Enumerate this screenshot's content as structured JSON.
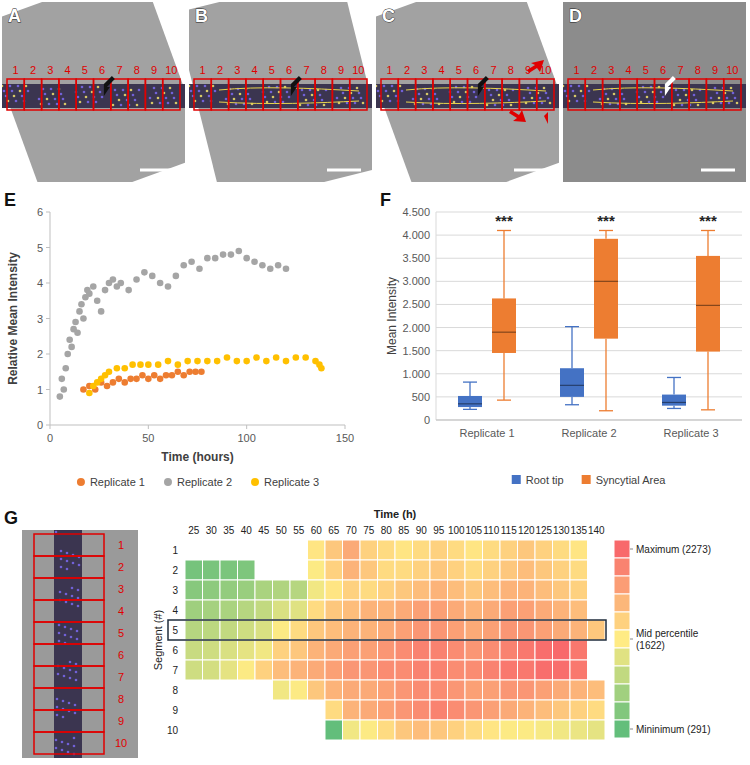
{
  "image_panels": [
    {
      "label": "A",
      "segments": [
        1,
        2,
        3,
        4,
        5,
        6,
        7,
        8,
        9,
        10
      ]
    },
    {
      "label": "B",
      "segments": [
        1,
        2,
        3,
        4,
        5,
        6,
        7,
        8,
        9,
        10
      ]
    },
    {
      "label": "C",
      "segments": [
        1,
        2,
        3,
        4,
        5,
        6,
        7,
        8,
        9,
        10
      ]
    },
    {
      "label": "D",
      "segments": [
        1,
        2,
        3,
        4,
        5,
        6,
        7,
        8,
        9,
        10
      ]
    }
  ],
  "g_image": {
    "segments": [
      1,
      2,
      3,
      4,
      5,
      6,
      7,
      8,
      9,
      10
    ]
  },
  "chart_data": [
    {
      "type": "scatter",
      "panel_label": "E",
      "xlabel": "Time (hours)",
      "ylabel": "Relative Mean Intensity",
      "xlim": [
        0,
        150
      ],
      "xticks": [
        0,
        50,
        100,
        150
      ],
      "ylim": [
        0,
        6
      ],
      "yticks": [
        0,
        1,
        2,
        3,
        4,
        5,
        6
      ],
      "grid": false,
      "legend": "bottom",
      "marker": "circle",
      "series": [
        {
          "name": "Replicate 1",
          "color": "#ed7d31",
          "x": [
            17,
            20,
            23,
            26,
            29,
            32,
            35,
            38,
            41,
            44,
            47,
            50,
            53,
            56,
            59,
            62,
            65,
            68,
            71,
            74,
            77
          ],
          "values": [
            1.0,
            1.1,
            1.0,
            1.2,
            1.1,
            1.2,
            1.3,
            1.2,
            1.3,
            1.3,
            1.4,
            1.3,
            1.4,
            1.3,
            1.4,
            1.4,
            1.5,
            1.4,
            1.5,
            1.5,
            1.5
          ]
        },
        {
          "name": "Replicate 2",
          "color": "#a5a5a5",
          "x": [
            5,
            6,
            7,
            8,
            9,
            10,
            11,
            12,
            13,
            14,
            15,
            16,
            17,
            18,
            19,
            20,
            22,
            24,
            26,
            28,
            30,
            32,
            34,
            36,
            40,
            44,
            48,
            52,
            56,
            60,
            64,
            68,
            72,
            76,
            80,
            84,
            88,
            92,
            96,
            100,
            104,
            108,
            112,
            116,
            120
          ],
          "values": [
            0.8,
            1.3,
            1.0,
            1.6,
            2.0,
            2.4,
            2.2,
            2.7,
            2.9,
            2.6,
            3.2,
            3.4,
            3.0,
            3.6,
            3.8,
            3.7,
            3.9,
            3.5,
            3.2,
            3.8,
            4.0,
            4.1,
            3.9,
            4.0,
            3.8,
            4.1,
            4.3,
            4.2,
            4.0,
            3.9,
            4.2,
            4.5,
            4.6,
            4.4,
            4.7,
            4.7,
            4.8,
            4.8,
            4.9,
            4.7,
            4.6,
            4.5,
            4.4,
            4.5,
            4.4
          ]
        },
        {
          "name": "Replicate 3",
          "color": "#ffc000",
          "x": [
            20,
            22,
            24,
            26,
            28,
            30,
            34,
            38,
            42,
            46,
            50,
            55,
            60,
            65,
            70,
            75,
            80,
            85,
            90,
            95,
            100,
            105,
            110,
            115,
            120,
            125,
            130,
            135,
            137,
            138
          ],
          "values": [
            0.9,
            1.1,
            1.2,
            1.3,
            1.4,
            1.5,
            1.6,
            1.6,
            1.7,
            1.7,
            1.7,
            1.7,
            1.8,
            1.7,
            1.8,
            1.8,
            1.8,
            1.8,
            1.9,
            1.8,
            1.8,
            1.9,
            1.8,
            1.9,
            1.8,
            1.9,
            1.9,
            1.8,
            1.7,
            1.6
          ]
        }
      ]
    },
    {
      "type": "box",
      "panel_label": "F",
      "ylabel": "Mean Intensity",
      "categories": [
        "Replicate 1",
        "Replicate 2",
        "Replicate 3"
      ],
      "ylim": [
        0,
        4500
      ],
      "yticks": [
        0,
        500,
        {
          "value": 1000,
          "label": "1.000"
        },
        {
          "value": 1500,
          "label": "1.500"
        },
        {
          "value": 2000,
          "label": "2.000"
        },
        {
          "value": 2500,
          "label": "2.500"
        },
        {
          "value": 3000,
          "label": "3.000"
        },
        {
          "value": 3500,
          "label": "3.500"
        },
        {
          "value": 4000,
          "label": "4.000"
        },
        {
          "value": 4500,
          "label": "4.500"
        }
      ],
      "grid": true,
      "legend": "bottom",
      "annotations": [
        "***",
        "***",
        "***"
      ],
      "series": [
        {
          "name": "Root tip",
          "color": "#4472c4",
          "min": [
            230,
            330,
            250
          ],
          "q1": [
            280,
            500,
            310
          ],
          "median": [
            350,
            750,
            380
          ],
          "q3": [
            520,
            1120,
            550
          ],
          "max": [
            820,
            2020,
            920
          ]
        },
        {
          "name": "Syncytial Area",
          "color": "#ed7d31",
          "min": [
            430,
            200,
            220
          ],
          "q1": [
            1450,
            1760,
            1480
          ],
          "median": [
            1900,
            3000,
            2480
          ],
          "q3": [
            2630,
            3920,
            3550
          ],
          "max": [
            4100,
            4100,
            4100
          ]
        }
      ]
    },
    {
      "type": "heatmap",
      "panel_label": "G",
      "xlabel": "Time (h)",
      "ylabel": "Segment (#)",
      "x": [
        25,
        30,
        35,
        40,
        45,
        50,
        55,
        60,
        65,
        70,
        75,
        80,
        85,
        90,
        95,
        100,
        105,
        110,
        115,
        120,
        125,
        130,
        135,
        140
      ],
      "y": [
        1,
        2,
        3,
        4,
        5,
        6,
        7,
        8,
        9,
        10
      ],
      "cells": [
        [
          null,
          null,
          null,
          null,
          null,
          null,
          null,
          1650,
          1800,
          1950,
          1750,
          1700,
          1650,
          1700,
          1750,
          1700,
          1650,
          1700,
          1750,
          1800,
          1750,
          1700,
          1650,
          null
        ],
        [
          450,
          480,
          500,
          520,
          null,
          null,
          null,
          1600,
          1750,
          1900,
          1800,
          1700,
          1700,
          1750,
          1800,
          1750,
          1700,
          1750,
          1800,
          1850,
          1800,
          1750,
          1700,
          null
        ],
        [
          600,
          650,
          700,
          750,
          900,
          950,
          1000,
          1500,
          1650,
          1750,
          1700,
          1750,
          1800,
          1850,
          1900,
          1850,
          1800,
          1850,
          1900,
          1900,
          1850,
          1800,
          1750,
          null
        ],
        [
          800,
          850,
          900,
          1000,
          1100,
          1300,
          1350,
          1700,
          1800,
          1850,
          1900,
          1900,
          1950,
          2000,
          2000,
          1950,
          1900,
          1950,
          2000,
          2000,
          1950,
          1900,
          1850,
          null
        ],
        [
          1000,
          1050,
          1100,
          1200,
          1300,
          1600,
          1700,
          1800,
          1850,
          1900,
          1900,
          1950,
          2000,
          2050,
          2050,
          2000,
          1950,
          2000,
          2050,
          2050,
          2000,
          1950,
          1900,
          1800
        ],
        [
          1150,
          1200,
          1300,
          1400,
          1500,
          1750,
          1800,
          1900,
          1950,
          2000,
          2000,
          2050,
          2100,
          2150,
          2150,
          2100,
          2050,
          2100,
          2150,
          2200,
          2250,
          2273,
          2200,
          null
        ],
        [
          1200,
          1250,
          1400,
          1600,
          1750,
          1850,
          1900,
          1950,
          2000,
          2050,
          2050,
          2100,
          2100,
          2150,
          2150,
          2100,
          2100,
          2150,
          2200,
          2200,
          2250,
          2250,
          2200,
          null
        ],
        [
          null,
          null,
          null,
          null,
          null,
          1500,
          1600,
          1800,
          1900,
          1950,
          1950,
          2000,
          2050,
          2100,
          2100,
          2050,
          2000,
          2000,
          2050,
          2050,
          2000,
          1950,
          1900,
          1850
        ],
        [
          null,
          null,
          null,
          null,
          null,
          null,
          null,
          null,
          1700,
          1900,
          1950,
          2000,
          2050,
          2100,
          2150,
          2100,
          2050,
          2000,
          1950,
          1900,
          1850,
          1800,
          1750,
          1700
        ],
        [
          null,
          null,
          null,
          null,
          null,
          null,
          null,
          null,
          291,
          1500,
          1600,
          1700,
          1800,
          1850,
          1800,
          1750,
          1700,
          1650,
          1600,
          1600,
          1550,
          1500,
          1450,
          1400
        ]
      ],
      "zlim": [
        291,
        2273
      ],
      "zticks": [
        {
          "value": 2273,
          "label": "Maximum (2273)"
        },
        {
          "value": 1622,
          "label": "Mid percentile (1622)"
        },
        {
          "value": 291,
          "label": "Mininimum (291)"
        }
      ]
    }
  ]
}
